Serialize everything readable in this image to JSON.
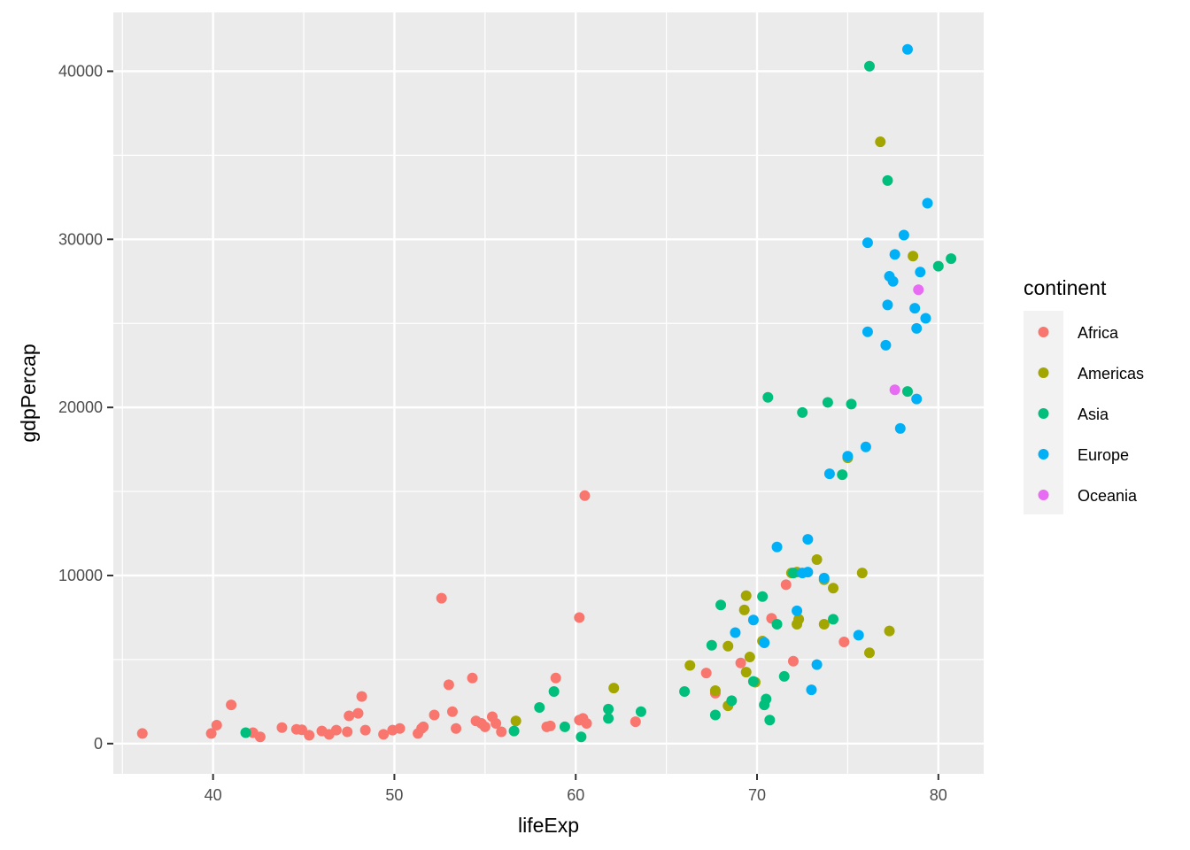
{
  "chart_data": {
    "type": "scatter",
    "xlabel": "lifeExp",
    "ylabel": "gdpPercap",
    "xlim": [
      34.5,
      82.5
    ],
    "ylim": [
      -1800,
      43500
    ],
    "x_ticks": [
      40,
      50,
      60,
      70,
      80
    ],
    "y_ticks": [
      0,
      10000,
      20000,
      30000,
      40000
    ],
    "x_tick_labels": [
      "40",
      "50",
      "60",
      "70",
      "80"
    ],
    "y_tick_labels": [
      "0",
      "10000",
      "20000",
      "30000",
      "40000"
    ],
    "grid": true,
    "legend": {
      "title": "continent",
      "position": "right"
    },
    "series": [
      {
        "name": "Africa",
        "color": "#F8766D",
        "points": [
          [
            36.1,
            600
          ],
          [
            39.9,
            600
          ],
          [
            40.2,
            1100
          ],
          [
            41.0,
            2300
          ],
          [
            42.2,
            650
          ],
          [
            42.6,
            400
          ],
          [
            43.8,
            950
          ],
          [
            44.6,
            850
          ],
          [
            44.9,
            820
          ],
          [
            45.3,
            500
          ],
          [
            46.0,
            750
          ],
          [
            46.4,
            550
          ],
          [
            46.8,
            800
          ],
          [
            47.4,
            700
          ],
          [
            47.5,
            1650
          ],
          [
            48.0,
            1800
          ],
          [
            48.2,
            2800
          ],
          [
            48.4,
            800
          ],
          [
            49.4,
            550
          ],
          [
            49.9,
            800
          ],
          [
            50.3,
            900
          ],
          [
            51.3,
            600
          ],
          [
            51.5,
            900
          ],
          [
            51.6,
            1000
          ],
          [
            52.2,
            1700
          ],
          [
            52.6,
            8650
          ],
          [
            53.0,
            3500
          ],
          [
            53.2,
            1900
          ],
          [
            53.4,
            900
          ],
          [
            54.3,
            3900
          ],
          [
            54.5,
            1350
          ],
          [
            54.8,
            1200
          ],
          [
            55.0,
            1000
          ],
          [
            55.4,
            1600
          ],
          [
            55.6,
            1200
          ],
          [
            55.9,
            700
          ],
          [
            58.4,
            1000
          ],
          [
            58.6,
            1050
          ],
          [
            58.9,
            3900
          ],
          [
            60.2,
            1400
          ],
          [
            60.2,
            7500
          ],
          [
            60.4,
            1500
          ],
          [
            60.5,
            14750
          ],
          [
            60.6,
            1200
          ],
          [
            63.3,
            1300
          ],
          [
            67.2,
            4200
          ],
          [
            67.7,
            3000
          ],
          [
            69.1,
            4800
          ],
          [
            70.8,
            7450
          ],
          [
            71.6,
            9450
          ],
          [
            72.0,
            4900
          ],
          [
            74.8,
            6050
          ]
        ]
      },
      {
        "name": "Americas",
        "color": "#A3A500",
        "points": [
          [
            56.7,
            1350
          ],
          [
            62.1,
            3300
          ],
          [
            66.3,
            4650
          ],
          [
            67.7,
            3150
          ],
          [
            68.4,
            2250
          ],
          [
            68.4,
            5800
          ],
          [
            69.3,
            7950
          ],
          [
            69.4,
            8800
          ],
          [
            69.4,
            4250
          ],
          [
            69.6,
            5150
          ],
          [
            69.9,
            3650
          ],
          [
            70.3,
            6100
          ],
          [
            71.9,
            10150
          ],
          [
            72.2,
            10200
          ],
          [
            72.2,
            7100
          ],
          [
            72.3,
            7400
          ],
          [
            73.3,
            10950
          ],
          [
            73.7,
            9750
          ],
          [
            73.7,
            7100
          ],
          [
            74.2,
            9250
          ],
          [
            75.0,
            17000
          ],
          [
            75.8,
            10150
          ],
          [
            76.2,
            5400
          ],
          [
            76.8,
            35800
          ],
          [
            77.3,
            6700
          ],
          [
            78.6,
            29000
          ]
        ]
      },
      {
        "name": "Asia",
        "color": "#00BF7D",
        "points": [
          [
            41.8,
            650
          ],
          [
            56.6,
            750
          ],
          [
            58.0,
            2150
          ],
          [
            58.8,
            3100
          ],
          [
            59.4,
            1000
          ],
          [
            60.3,
            400
          ],
          [
            61.8,
            1500
          ],
          [
            61.8,
            2050
          ],
          [
            63.6,
            1900
          ],
          [
            66.0,
            3100
          ],
          [
            67.5,
            5850
          ],
          [
            67.7,
            1700
          ],
          [
            68.0,
            8250
          ],
          [
            68.6,
            2550
          ],
          [
            69.8,
            3700
          ],
          [
            70.3,
            8750
          ],
          [
            70.4,
            6000
          ],
          [
            70.4,
            2300
          ],
          [
            70.5,
            2650
          ],
          [
            70.6,
            20600
          ],
          [
            70.7,
            1400
          ],
          [
            71.1,
            7100
          ],
          [
            71.5,
            4000
          ],
          [
            72.0,
            10150
          ],
          [
            72.5,
            19700
          ],
          [
            73.9,
            20300
          ],
          [
            74.2,
            7400
          ],
          [
            74.7,
            16000
          ],
          [
            75.2,
            20200
          ],
          [
            76.2,
            40300
          ],
          [
            77.2,
            33500
          ],
          [
            78.3,
            20950
          ],
          [
            80.0,
            28400
          ],
          [
            80.7,
            28850
          ]
        ]
      },
      {
        "name": "Europe",
        "color": "#00B0F6",
        "points": [
          [
            68.8,
            6600
          ],
          [
            69.8,
            7350
          ],
          [
            70.4,
            6000
          ],
          [
            71.1,
            11700
          ],
          [
            72.2,
            7900
          ],
          [
            72.5,
            10150
          ],
          [
            72.8,
            12150
          ],
          [
            72.8,
            10200
          ],
          [
            73.0,
            3200
          ],
          [
            73.3,
            4700
          ],
          [
            73.7,
            9850
          ],
          [
            74.0,
            16050
          ],
          [
            75.0,
            17100
          ],
          [
            75.6,
            6450
          ],
          [
            76.0,
            17650
          ],
          [
            76.1,
            24500
          ],
          [
            76.1,
            29800
          ],
          [
            77.1,
            23700
          ],
          [
            77.2,
            26100
          ],
          [
            77.3,
            27800
          ],
          [
            77.5,
            27500
          ],
          [
            77.6,
            29100
          ],
          [
            77.9,
            18750
          ],
          [
            78.1,
            30250
          ],
          [
            78.3,
            41300
          ],
          [
            78.7,
            25900
          ],
          [
            78.8,
            24700
          ],
          [
            78.8,
            20500
          ],
          [
            79.0,
            28050
          ],
          [
            79.3,
            25300
          ],
          [
            79.4,
            32150
          ]
        ]
      },
      {
        "name": "Oceania",
        "color": "#E76BF3",
        "points": [
          [
            77.6,
            21050
          ],
          [
            78.9,
            27000
          ]
        ]
      }
    ]
  }
}
